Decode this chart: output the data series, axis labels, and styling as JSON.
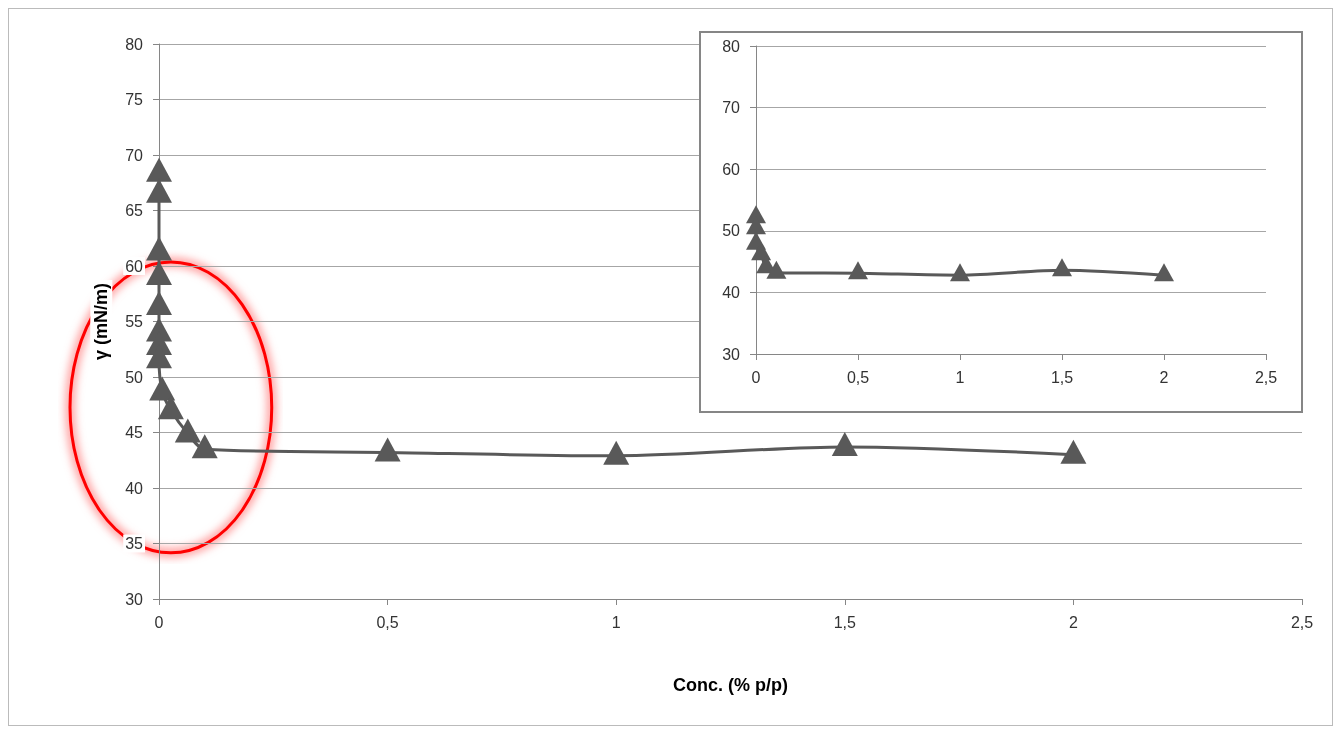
{
  "chart_data": [
    {
      "type": "line",
      "xlabel": "Conc. (% p/p)",
      "ylabel": "γ (mN/m)",
      "x": [
        0,
        0,
        0,
        0,
        0,
        0,
        0,
        0,
        0.007,
        0.026,
        0.063,
        0.1,
        0.5,
        1,
        1.5,
        2
      ],
      "series": [
        {
          "color": "#595959",
          "values": [
            68.4,
            66.5,
            61.3,
            59.1,
            56.4,
            54,
            52.8,
            51.6,
            48.7,
            47,
            44.9,
            43.5,
            43.2,
            42.9,
            43.7,
            43.0
          ]
        }
      ],
      "xlim": [
        0,
        2.5
      ],
      "xticks": [
        0,
        {
          "value": 0.5,
          "label": "0,5"
        },
        1,
        {
          "value": 1.5,
          "label": "1,5"
        },
        2,
        {
          "value": 2.5,
          "label": "2,5"
        }
      ],
      "ylim": [
        30,
        80
      ],
      "yticks": [
        30,
        35,
        40,
        45,
        50,
        55,
        60,
        65,
        70,
        75,
        80
      ],
      "grid": "y",
      "marker": "triangle",
      "line_style": "solid"
    },
    {
      "type": "line",
      "x": [
        0,
        0,
        0,
        0.025,
        0.05,
        0.1,
        0.5,
        1,
        1.5,
        2
      ],
      "series": [
        {
          "color": "#595959",
          "values": [
            52.2,
            50.4,
            47.9,
            46.2,
            44.1,
            43.2,
            43.1,
            42.8,
            43.6,
            42.8
          ]
        }
      ],
      "xlim": [
        0,
        2.5
      ],
      "xticks": [
        0,
        {
          "value": 0.5,
          "label": "0,5"
        },
        1,
        {
          "value": 1.5,
          "label": "1,5"
        },
        2,
        {
          "value": 2.5,
          "label": "2,5"
        }
      ],
      "ylim": [
        30,
        80
      ],
      "yticks": [
        30,
        40,
        50,
        60,
        70,
        80
      ],
      "grid": "y",
      "marker": "triangle",
      "line_style": "solid"
    }
  ]
}
